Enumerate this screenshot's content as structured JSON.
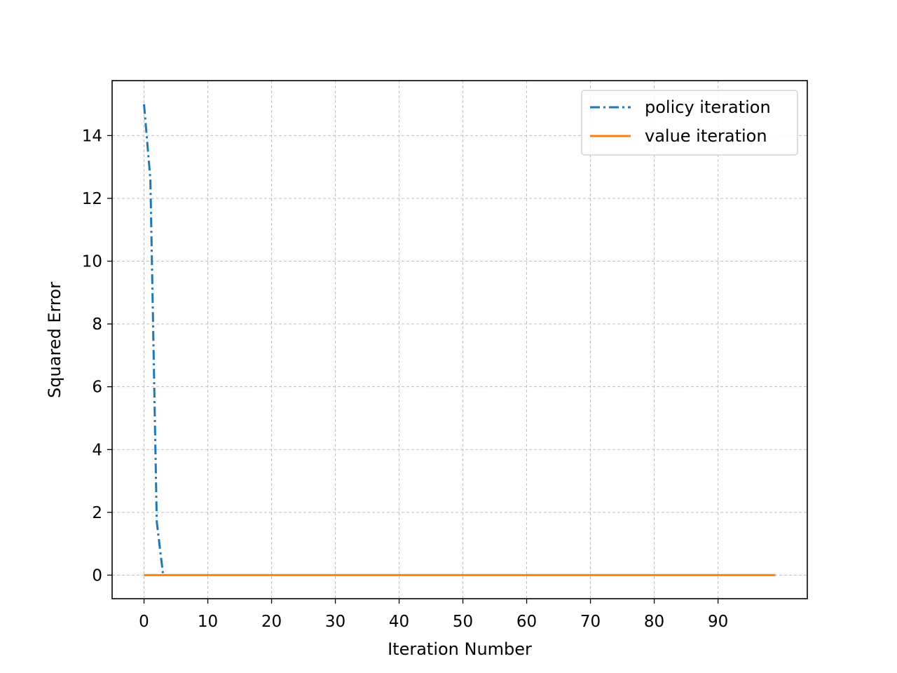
{
  "chart_data": {
    "type": "line",
    "xlabel": "Iteration Number",
    "ylabel": "Squared Error",
    "xlim": [
      -5,
      104
    ],
    "ylim": [
      -0.75,
      15.75
    ],
    "xticks": [
      0,
      10,
      20,
      30,
      40,
      50,
      60,
      70,
      80,
      90
    ],
    "yticks": [
      0,
      2,
      4,
      6,
      8,
      10,
      12,
      14
    ],
    "grid": true,
    "legend_position": "top-right",
    "series": [
      {
        "name": "policy iteration",
        "color": "#1f77b4",
        "line_style": "dash-dot",
        "x": [
          0,
          1,
          2,
          3
        ],
        "y": [
          15.0,
          12.6,
          1.7,
          0.0
        ]
      },
      {
        "name": "value iteration",
        "color": "#ff7f0e",
        "line_style": "solid",
        "x_start": 0,
        "x_end": 99,
        "constant_y": 0.0
      }
    ]
  }
}
